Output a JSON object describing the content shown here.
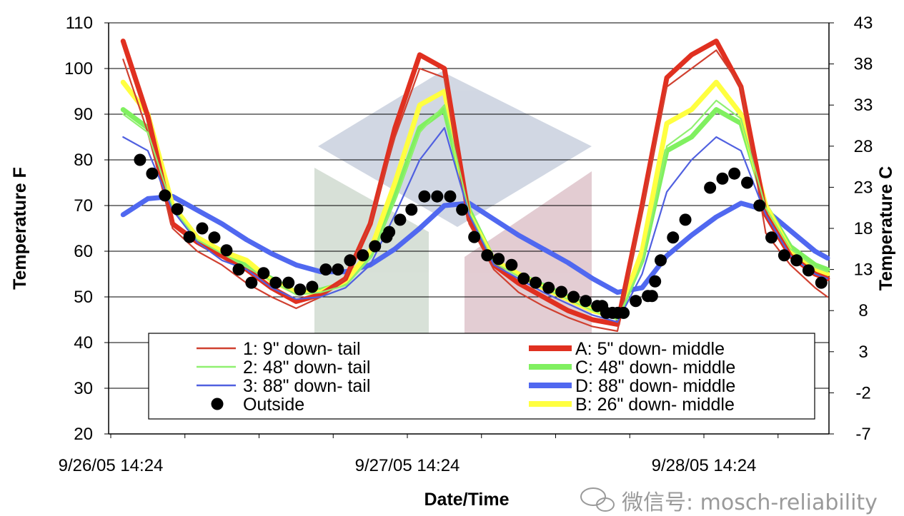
{
  "chart_data": {
    "type": "line",
    "title": "",
    "xlabel": "Date/Time",
    "ylabel": "Temperature F",
    "ylabel_right": "Temperature C",
    "ylim": [
      20,
      110
    ],
    "yticks": [
      20,
      30,
      40,
      50,
      60,
      70,
      80,
      90,
      100,
      110
    ],
    "ylim_right": [
      -7,
      43
    ],
    "yticks_right": [
      -7,
      -2,
      3,
      8,
      13,
      18,
      23,
      28,
      33,
      38,
      43
    ],
    "xlim": [
      "9/26/05 14:10",
      "9/29/05 00:30"
    ],
    "xticks": [
      "9/26/05 14:24",
      "9/27/05 14:24",
      "9/28/05 14:24"
    ],
    "grid": "horizontal",
    "legend_placement": "bottom-center",
    "x": [
      "9/26/05 15:24",
      "9/26/05 17:24",
      "9/26/05 19:24",
      "9/26/05 21:24",
      "9/26/05 23:24",
      "9/27/05 01:24",
      "9/27/05 03:24",
      "9/27/05 05:24",
      "9/27/05 07:24",
      "9/27/05 09:24",
      "9/27/05 11:24",
      "9/27/05 13:24",
      "9/27/05 15:24",
      "9/27/05 17:24",
      "9/27/05 19:24",
      "9/27/05 21:24",
      "9/27/05 23:24",
      "9/28/05 01:24",
      "9/28/05 03:24",
      "9/28/05 05:24",
      "9/28/05 07:24",
      "9/28/05 09:24",
      "9/28/05 11:24",
      "9/28/05 13:24",
      "9/28/05 15:24",
      "9/28/05 17:24",
      "9/28/05 19:24",
      "9/28/05 21:24",
      "9/28/05 23:24",
      "9/29/05 00:24"
    ],
    "series": [
      {
        "name": "D: 88\" down- middle",
        "color": "#5068f0",
        "style": "thick",
        "values": [
          68,
          71.5,
          72,
          69,
          66,
          62.5,
          59.5,
          57,
          55.5,
          55.5,
          57,
          60.5,
          65,
          70,
          70.5,
          67,
          63.5,
          60.5,
          57.5,
          54,
          51,
          52,
          59,
          63.5,
          67.5,
          70.5,
          69,
          64.5,
          60,
          58.5
        ]
      },
      {
        "name": "C: 48\" down- middle",
        "color": "#80f060",
        "style": "thick",
        "values": [
          91,
          87,
          70,
          63,
          60,
          57,
          54,
          51,
          51.5,
          53,
          59,
          72,
          87,
          91,
          69,
          58,
          55,
          52.5,
          50,
          47.5,
          45.5,
          58,
          82,
          85,
          91,
          88,
          70,
          61,
          57,
          56
        ]
      },
      {
        "name": "B: 26\" down- middle",
        "color": "#ffff40",
        "style": "thick",
        "values": [
          97,
          90,
          70,
          63,
          60,
          58,
          53.5,
          51,
          51,
          53.5,
          60,
          75,
          92,
          95,
          68,
          58,
          55,
          52,
          49.5,
          47,
          45.5,
          60,
          88,
          91,
          97,
          90,
          70,
          60,
          56,
          55
        ]
      },
      {
        "name": "A: 5\" down- middle",
        "color": "#e03020",
        "style": "thick",
        "values": [
          106,
          89.5,
          66,
          62,
          59,
          56,
          52,
          49,
          50.5,
          54,
          66,
          87,
          103,
          100,
          67,
          57,
          53,
          50,
          47,
          45,
          44,
          70,
          98,
          103,
          106,
          96,
          68,
          59,
          55,
          54
        ]
      },
      {
        "name": "1: 9\" down- tail",
        "color": "#d04030",
        "style": "thin",
        "values": [
          102,
          86,
          65,
          60,
          57,
          53,
          50,
          47.5,
          50,
          54,
          66,
          85,
          100,
          98,
          66,
          56,
          51,
          48,
          45.5,
          43.5,
          42.5,
          69,
          96,
          100,
          104,
          96,
          64,
          57,
          52,
          50
        ]
      },
      {
        "name": "2: 48\" down- tail",
        "color": "#90f070",
        "style": "thin",
        "values": [
          90,
          86,
          69.5,
          62.5,
          59.5,
          56.5,
          53.5,
          50.5,
          51,
          52.5,
          58.5,
          71,
          86,
          92,
          68.5,
          57.5,
          54.5,
          52,
          49.5,
          47,
          45,
          57.5,
          83,
          87,
          93,
          89,
          69.5,
          60.5,
          56.5,
          55.5
        ]
      },
      {
        "name": "3: 88\" down- tail",
        "color": "#5060e0",
        "style": "thin",
        "values": [
          85,
          82,
          69,
          62,
          58,
          56,
          52,
          49.5,
          50,
          52,
          57,
          68,
          80,
          87,
          68,
          57,
          54,
          51,
          48.5,
          46,
          44.5,
          55,
          73,
          80,
          85,
          82,
          68,
          59,
          55,
          54
        ]
      }
    ],
    "outside": {
      "name": "Outside",
      "color": "#000000",
      "style": "markers",
      "points": [
        [
          "9/26/05 16:46",
          80
        ],
        [
          "9/26/05 17:45",
          77
        ],
        [
          "9/26/05 18:47",
          72.2
        ],
        [
          "9/26/05 19:47",
          69.2
        ],
        [
          "9/26/05 20:46",
          63.1
        ],
        [
          "9/26/05 21:48",
          65
        ],
        [
          "9/26/05 22:47",
          63
        ],
        [
          "9/26/05 23:46",
          60.2
        ],
        [
          "9/27/05 00:45",
          56
        ],
        [
          "9/27/05 01:47",
          53.1
        ],
        [
          "9/27/05 02:46",
          55.2
        ],
        [
          "9/27/05 03:45",
          53.1
        ],
        [
          "9/27/05 04:47",
          53.1
        ],
        [
          "9/27/05 05:43",
          51.6
        ],
        [
          "9/27/05 06:42",
          52.2
        ],
        [
          "9/27/05 07:48",
          56
        ],
        [
          "9/27/05 08:47",
          56
        ],
        [
          "9/27/05 09:46",
          58
        ],
        [
          "9/27/05 10:48",
          59.1
        ],
        [
          "9/27/05 11:47",
          61.1
        ],
        [
          "9/27/05 12:43",
          63.1
        ],
        [
          "9/27/05 12:56",
          64.2
        ],
        [
          "9/27/05 13:49",
          66.9
        ],
        [
          "9/27/05 14:44",
          69.1
        ],
        [
          "9/27/05 15:47",
          72
        ],
        [
          "9/27/05 16:49",
          72
        ],
        [
          "9/27/05 17:52",
          72
        ],
        [
          "9/27/05 18:50",
          69.1
        ],
        [
          "9/27/05 19:49",
          63.1
        ],
        [
          "9/27/05 20:52",
          59.1
        ],
        [
          "9/27/05 21:47",
          58.3
        ],
        [
          "9/27/05 22:50",
          57
        ],
        [
          "9/27/05 23:49",
          54
        ],
        [
          "9/28/05 00:47",
          53.1
        ],
        [
          "9/28/05 01:50",
          52
        ],
        [
          "9/28/05 02:52",
          51.1
        ],
        [
          "9/28/05 03:51",
          50
        ],
        [
          "9/28/05 04:50",
          49.1
        ],
        [
          "9/28/05 05:46",
          48
        ],
        [
          "9/28/05 06:10",
          48
        ],
        [
          "9/28/05 06:30",
          46.5
        ],
        [
          "9/28/05 07:00",
          46.5
        ],
        [
          "9/28/05 07:26",
          46.5
        ],
        [
          "9/28/05 07:54",
          46.5
        ],
        [
          "9/28/05 08:53",
          49.1
        ],
        [
          "9/28/05 09:52",
          50.2
        ],
        [
          "9/28/05 10:12",
          50.2
        ],
        [
          "9/28/05 10:27",
          53.4
        ],
        [
          "9/28/05 10:54",
          58
        ],
        [
          "9/28/05 11:54",
          63
        ],
        [
          "9/28/05 12:54",
          66.9
        ],
        [
          "9/28/05 14:54",
          73.9
        ],
        [
          "9/28/05 15:54",
          75.9
        ],
        [
          "9/28/05 16:52",
          77
        ],
        [
          "9/28/05 17:54",
          75
        ],
        [
          "9/28/05 18:54",
          70
        ],
        [
          "9/28/05 19:52",
          63
        ],
        [
          "9/28/05 20:54",
          59.1
        ],
        [
          "9/28/05 21:54",
          58
        ],
        [
          "9/28/05 22:52",
          55.8
        ],
        [
          "9/28/05 23:54",
          53.1
        ]
      ]
    },
    "legend": {
      "left": [
        "1: 9\" down- tail",
        "2: 48\" down- tail",
        "3: 88\" down- tail",
        "Outside"
      ],
      "right": [
        "A: 5\" down- middle",
        "C: 48\" down- middle",
        "D: 88\" down- middle",
        "B: 26\" down- middle"
      ]
    }
  },
  "watermark": {
    "text": "微信号: mosch-reliability",
    "icon": "wechat-icon"
  }
}
